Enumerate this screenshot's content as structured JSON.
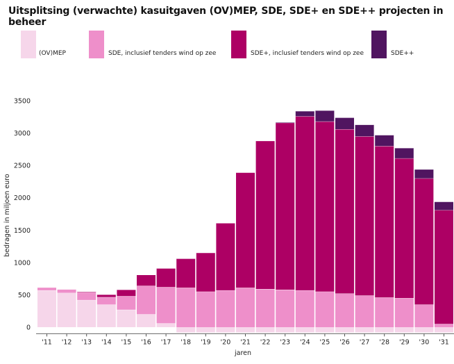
{
  "chart_data": {
    "type": "bar",
    "stacked": true,
    "title": "Uitsplitsing (verwachte) kasuitgaven (OV)MEP, SDE, SDE+ en SDE++ projecten in beheer",
    "xlabel": "jaren",
    "ylabel": "bedragen in miljoen euro",
    "ylim": [
      -100,
      3500
    ],
    "yticks": [
      0,
      500,
      1000,
      1500,
      2000,
      2500,
      3000,
      3500
    ],
    "categories": [
      "'11",
      "'12",
      "'13",
      "'14",
      "'15",
      "'16",
      "'17",
      "'18",
      "'19",
      "'20",
      "'21",
      "'22",
      "'23",
      "'24",
      "'25",
      "'26",
      "'27",
      "'28",
      "'29",
      "'30",
      "'31"
    ],
    "series": [
      {
        "name": "(OV)MEP",
        "color": "#f6d6ea",
        "values": [
          570,
          530,
          420,
          350,
          270,
          200,
          60,
          -80,
          -80,
          -80,
          -80,
          -80,
          -80,
          -80,
          -80,
          -80,
          -80,
          -80,
          -80,
          -80,
          -80
        ]
      },
      {
        "name": "SDE, inclusief tenders wind op zee",
        "color": "#ee8fca",
        "values": [
          45,
          55,
          120,
          115,
          210,
          440,
          560,
          610,
          550,
          570,
          610,
          590,
          580,
          570,
          550,
          520,
          490,
          460,
          450,
          350,
          50
        ]
      },
      {
        "name": "SDE+, inclusief tenders wind op zee",
        "color": "#ad0064",
        "values": [
          0,
          0,
          10,
          40,
          100,
          170,
          290,
          450,
          600,
          1040,
          1780,
          2290,
          2580,
          2690,
          2630,
          2540,
          2460,
          2340,
          2160,
          1950,
          1760
        ]
      },
      {
        "name": "SDE++",
        "color": "#501560",
        "values": [
          0,
          0,
          0,
          0,
          0,
          0,
          0,
          0,
          0,
          0,
          0,
          0,
          10,
          80,
          170,
          180,
          180,
          170,
          160,
          140,
          130
        ]
      }
    ]
  }
}
